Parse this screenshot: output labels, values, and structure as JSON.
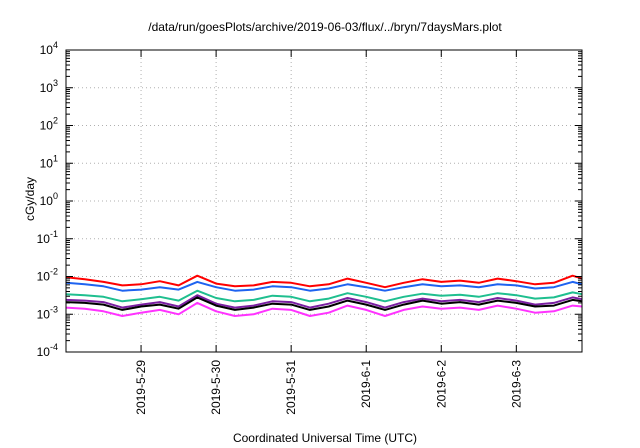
{
  "chart_data": {
    "type": "line",
    "title": "/data/run/goesPlots/archive/2019-06-03/flux/../bryn/7daysMars.plot",
    "xlabel": "Coordinated Universal Time (UTC)",
    "ylabel": "cGy/day",
    "yscale": "log",
    "ylim": [
      0.0001,
      10000
    ],
    "yticks": [
      {
        "base": "10",
        "exp": "4"
      },
      {
        "base": "10",
        "exp": "3"
      },
      {
        "base": "10",
        "exp": "2"
      },
      {
        "base": "10",
        "exp": "1"
      },
      {
        "base": "10",
        "exp": "0"
      },
      {
        "base": "10",
        "exp": "-1"
      },
      {
        "base": "10",
        "exp": "-2"
      },
      {
        "base": "10",
        "exp": "-3"
      },
      {
        "base": "10",
        "exp": "-4"
      }
    ],
    "xlim": [
      "2019-05-28",
      "2019-06-03 21:00"
    ],
    "xticks": [
      "2019-5-29",
      "2019-5-30",
      "2019-5-31",
      "2019-6-1",
      "2019-6-2",
      "2019-6-3"
    ],
    "grid": true,
    "x": [
      "2019-05-28 00:00",
      "2019-05-28 06:00",
      "2019-05-28 12:00",
      "2019-05-28 18:00",
      "2019-05-29 00:00",
      "2019-05-29 06:00",
      "2019-05-29 12:00",
      "2019-05-29 18:00",
      "2019-05-30 00:00",
      "2019-05-30 06:00",
      "2019-05-30 12:00",
      "2019-05-30 18:00",
      "2019-05-31 00:00",
      "2019-05-31 06:00",
      "2019-05-31 12:00",
      "2019-05-31 18:00",
      "2019-06-01 00:00",
      "2019-06-01 06:00",
      "2019-06-01 12:00",
      "2019-06-01 18:00",
      "2019-06-02 00:00",
      "2019-06-02 06:00",
      "2019-06-02 12:00",
      "2019-06-02 18:00",
      "2019-06-03 00:00",
      "2019-06-03 06:00",
      "2019-06-03 12:00",
      "2019-06-03 18:00",
      "2019-06-03 21:00"
    ],
    "series": [
      {
        "color": "#ff0000",
        "values": [
          0.0095,
          0.0085,
          0.0072,
          0.0058,
          0.0062,
          0.0075,
          0.0058,
          0.0105,
          0.0065,
          0.0055,
          0.0058,
          0.0072,
          0.0068,
          0.0055,
          0.0062,
          0.0088,
          0.0068,
          0.0052,
          0.0068,
          0.0085,
          0.0072,
          0.0078,
          0.0068,
          0.0088,
          0.0075,
          0.0062,
          0.0068,
          0.0105,
          0.0088
        ]
      },
      {
        "color": "#1e63f0",
        "values": [
          0.0068,
          0.0062,
          0.0055,
          0.0042,
          0.0045,
          0.0052,
          0.0045,
          0.0072,
          0.0052,
          0.0042,
          0.0045,
          0.0055,
          0.0052,
          0.0042,
          0.0048,
          0.0062,
          0.0052,
          0.0042,
          0.0052,
          0.0062,
          0.0055,
          0.0058,
          0.0052,
          0.0062,
          0.0058,
          0.0048,
          0.0052,
          0.0072,
          0.0062
        ]
      },
      {
        "color": "#1fbf8f",
        "values": [
          0.0034,
          0.0032,
          0.0029,
          0.0022,
          0.0025,
          0.0029,
          0.0023,
          0.0042,
          0.0027,
          0.0022,
          0.0024,
          0.0031,
          0.0029,
          0.0022,
          0.0026,
          0.0036,
          0.0029,
          0.0022,
          0.0029,
          0.0035,
          0.0031,
          0.0033,
          0.0029,
          0.0036,
          0.0032,
          0.0026,
          0.0028,
          0.0038,
          0.0034
        ]
      },
      {
        "color": "#7a1fa2",
        "values": [
          0.0024,
          0.0023,
          0.0021,
          0.0015,
          0.0018,
          0.0021,
          0.0016,
          0.0032,
          0.0019,
          0.0015,
          0.0017,
          0.0022,
          0.0021,
          0.0015,
          0.0019,
          0.0027,
          0.0021,
          0.0015,
          0.0021,
          0.0026,
          0.0022,
          0.0024,
          0.0021,
          0.0027,
          0.0023,
          0.0018,
          0.002,
          0.0028,
          0.0025
        ]
      },
      {
        "color": "#000000",
        "values": [
          0.0021,
          0.002,
          0.0018,
          0.0013,
          0.0016,
          0.0018,
          0.0014,
          0.0028,
          0.0017,
          0.0013,
          0.0015,
          0.0019,
          0.0018,
          0.0013,
          0.0016,
          0.0023,
          0.0018,
          0.0013,
          0.0018,
          0.0023,
          0.0019,
          0.0021,
          0.0018,
          0.0023,
          0.002,
          0.0016,
          0.0017,
          0.0024,
          0.0022
        ]
      },
      {
        "color": "#ff33ff",
        "values": [
          0.0015,
          0.0014,
          0.0012,
          0.0009,
          0.0011,
          0.0013,
          0.001,
          0.002,
          0.0012,
          0.0009,
          0.001,
          0.0014,
          0.0013,
          0.0009,
          0.0011,
          0.0017,
          0.0013,
          0.0009,
          0.0013,
          0.0016,
          0.0014,
          0.0015,
          0.0013,
          0.0017,
          0.0014,
          0.0011,
          0.0012,
          0.0017,
          0.0016
        ]
      }
    ]
  }
}
